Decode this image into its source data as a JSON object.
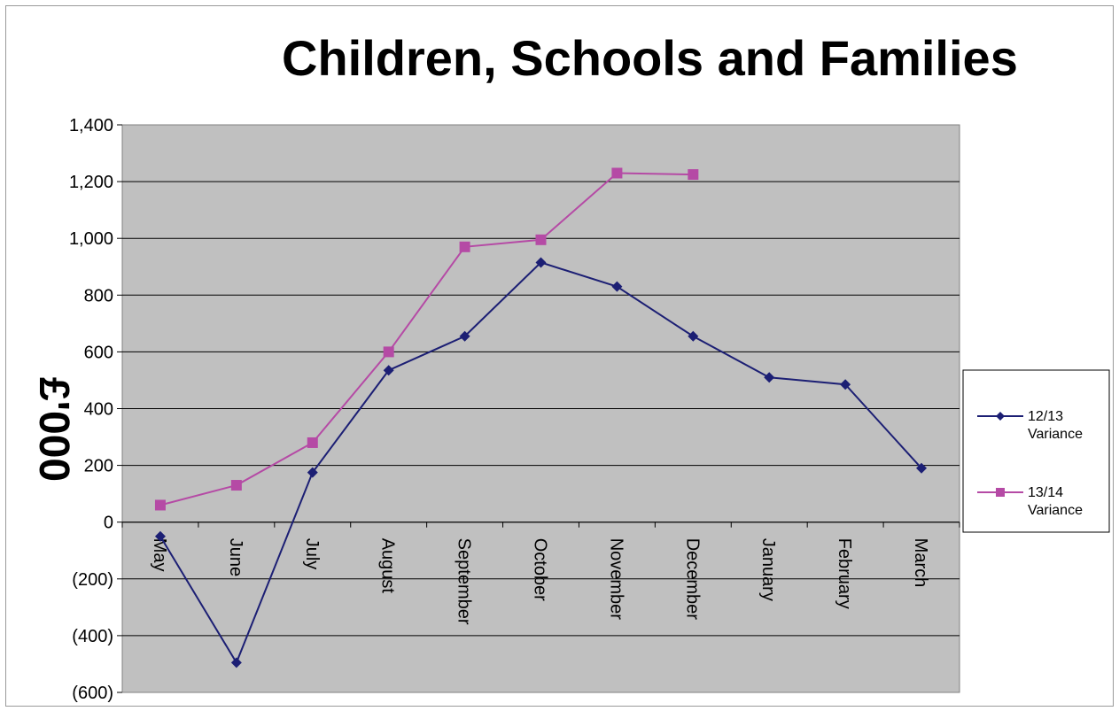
{
  "chart_data": {
    "type": "line",
    "title": "Children, Schools and Families",
    "xlabel": "",
    "ylabel": "£'000",
    "categories": [
      "May",
      "June",
      "July",
      "August",
      "September",
      "October",
      "November",
      "December",
      "January",
      "February",
      "March"
    ],
    "y_ticks": [
      "1,400",
      "1,200",
      "1,000",
      "800",
      "600",
      "400",
      "200",
      "0",
      "(200)",
      "(400)",
      "(600)"
    ],
    "ylim": [
      -600,
      1400
    ],
    "grid": true,
    "legend_position": "right",
    "series": [
      {
        "name": "12/13 Variance",
        "color": "#1c1f74",
        "marker": "diamond",
        "values": [
          -50,
          -495,
          175,
          535,
          655,
          915,
          830,
          655,
          510,
          485,
          190
        ]
      },
      {
        "name": "13/14 Variance",
        "color": "#b54aa5",
        "marker": "square",
        "values": [
          60,
          130,
          280,
          600,
          970,
          995,
          1230,
          1225,
          null,
          null,
          null
        ]
      }
    ],
    "colors": {
      "plot_bg": "#c0c0c0",
      "grid": "#000000"
    }
  }
}
